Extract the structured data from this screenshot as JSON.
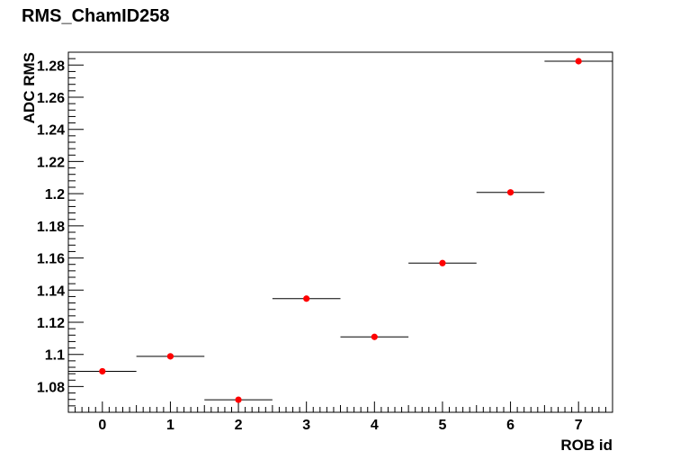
{
  "chart_data": {
    "type": "scatter",
    "title": "RMS_ChamID258",
    "xlabel": "ROB id",
    "ylabel": "ADC RMS",
    "xlim": [
      -0.5,
      7.5
    ],
    "ylim": [
      1.064,
      1.288
    ],
    "x_ticks": [
      0,
      1,
      2,
      3,
      4,
      5,
      6,
      7
    ],
    "y_ticks": [
      1.08,
      1.1,
      1.12,
      1.14,
      1.16,
      1.18,
      1.2,
      1.22,
      1.24,
      1.26,
      1.28
    ],
    "x_tick_labels": [
      "0",
      "1",
      "2",
      "3",
      "4",
      "5",
      "6",
      "7"
    ],
    "y_tick_labels": [
      "1.08",
      "1.1",
      "1.12",
      "1.14",
      "1.16",
      "1.18",
      "1.2",
      "1.22",
      "1.24",
      "1.26",
      "1.28"
    ],
    "x_error": 0.5,
    "grid": false,
    "marker_color": "#ff0000",
    "series": [
      {
        "x": [
          0,
          1,
          2,
          3,
          4,
          5,
          6,
          7
        ],
        "values": [
          1.0895,
          1.0988,
          1.0718,
          1.1347,
          1.1109,
          1.1568,
          1.2008,
          1.2824
        ]
      }
    ]
  }
}
